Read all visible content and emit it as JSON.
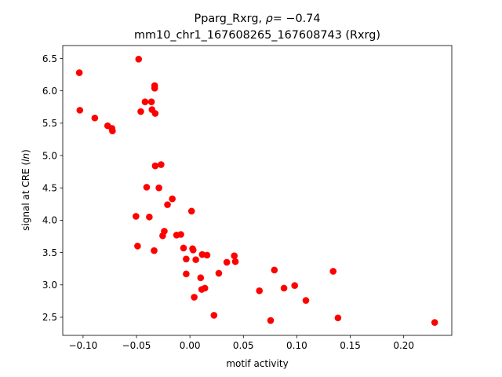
{
  "chart_data": {
    "type": "scatter",
    "title_line1_prefix": "Pparg_Rxrg, ",
    "title_line1_rho_symbol": "ρ",
    "title_line1_rho_value": "= −0.74",
    "title_line2": "mm10_chr1_167608265_167608743 (Rxrg)",
    "xlabel": "motif activity",
    "ylabel_prefix": "signal at CRE (",
    "ylabel_italic": "ln",
    "ylabel_suffix": ")",
    "xlim": [
      -0.119,
      0.245
    ],
    "ylim": [
      2.22,
      6.7
    ],
    "xticks": [
      -0.1,
      -0.05,
      0.0,
      0.05,
      0.1,
      0.15,
      0.2
    ],
    "xtick_labels": [
      "−0.10",
      "−0.05",
      "0.00",
      "0.05",
      "0.10",
      "0.15",
      "0.20"
    ],
    "yticks": [
      2.5,
      3.0,
      3.5,
      4.0,
      4.5,
      5.0,
      5.5,
      6.0,
      6.5
    ],
    "ytick_labels": [
      "2.5",
      "3.0",
      "3.5",
      "4.0",
      "4.5",
      "5.0",
      "5.5",
      "6.0",
      "6.5"
    ],
    "grid": false,
    "legend": "none",
    "marker_color": "#ff0000",
    "points": [
      {
        "x": -0.1035,
        "y": 6.28
      },
      {
        "x": -0.103,
        "y": 5.7
      },
      {
        "x": -0.089,
        "y": 5.58
      },
      {
        "x": -0.077,
        "y": 5.46
      },
      {
        "x": -0.073,
        "y": 5.42
      },
      {
        "x": -0.0725,
        "y": 5.38
      },
      {
        "x": -0.048,
        "y": 6.49
      },
      {
        "x": -0.046,
        "y": 5.68
      },
      {
        "x": -0.042,
        "y": 5.83
      },
      {
        "x": -0.036,
        "y": 5.83
      },
      {
        "x": -0.0355,
        "y": 5.71
      },
      {
        "x": -0.033,
        "y": 6.08
      },
      {
        "x": -0.033,
        "y": 6.04
      },
      {
        "x": -0.0325,
        "y": 5.65
      },
      {
        "x": -0.0325,
        "y": 4.84
      },
      {
        "x": -0.027,
        "y": 4.86
      },
      {
        "x": -0.0405,
        "y": 4.51
      },
      {
        "x": -0.029,
        "y": 4.5
      },
      {
        "x": -0.0505,
        "y": 4.06
      },
      {
        "x": -0.038,
        "y": 4.05
      },
      {
        "x": -0.0165,
        "y": 4.33
      },
      {
        "x": -0.021,
        "y": 4.24
      },
      {
        "x": 0.0015,
        "y": 4.14
      },
      {
        "x": -0.024,
        "y": 3.83
      },
      {
        "x": -0.0255,
        "y": 3.76
      },
      {
        "x": -0.0125,
        "y": 3.77
      },
      {
        "x": -0.0085,
        "y": 3.78
      },
      {
        "x": -0.049,
        "y": 3.6
      },
      {
        "x": -0.0335,
        "y": 3.53
      },
      {
        "x": -0.006,
        "y": 3.57
      },
      {
        "x": 0.0025,
        "y": 3.56
      },
      {
        "x": 0.003,
        "y": 3.54
      },
      {
        "x": 0.0115,
        "y": 3.47
      },
      {
        "x": 0.016,
        "y": 3.46
      },
      {
        "x": -0.0035,
        "y": 3.4
      },
      {
        "x": 0.0055,
        "y": 3.39
      },
      {
        "x": 0.0345,
        "y": 3.35
      },
      {
        "x": 0.0415,
        "y": 3.45
      },
      {
        "x": 0.0425,
        "y": 3.36
      },
      {
        "x": -0.0035,
        "y": 3.17
      },
      {
        "x": 0.01,
        "y": 3.11
      },
      {
        "x": 0.027,
        "y": 3.18
      },
      {
        "x": 0.011,
        "y": 2.93
      },
      {
        "x": 0.014,
        "y": 2.95
      },
      {
        "x": 0.004,
        "y": 2.81
      },
      {
        "x": 0.0225,
        "y": 2.53
      },
      {
        "x": 0.065,
        "y": 2.91
      },
      {
        "x": 0.079,
        "y": 3.23
      },
      {
        "x": 0.088,
        "y": 2.95
      },
      {
        "x": 0.098,
        "y": 2.99
      },
      {
        "x": 0.1085,
        "y": 2.76
      },
      {
        "x": 0.0755,
        "y": 2.45
      },
      {
        "x": 0.134,
        "y": 3.21
      },
      {
        "x": 0.1385,
        "y": 2.49
      },
      {
        "x": 0.229,
        "y": 2.42
      }
    ]
  }
}
